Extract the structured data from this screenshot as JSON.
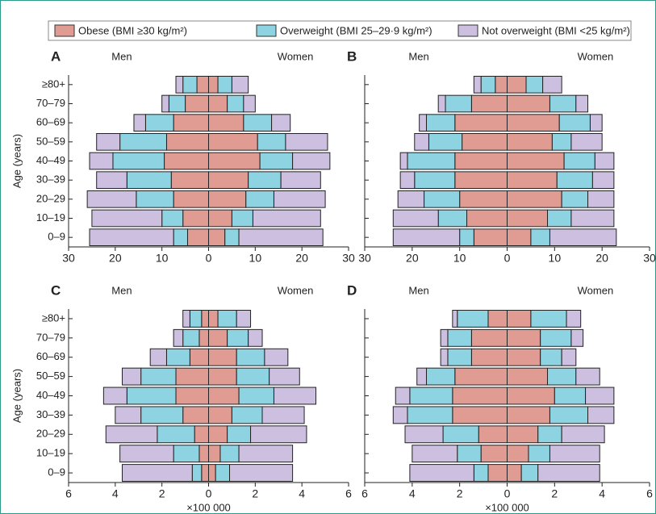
{
  "legend": [
    {
      "name": "Obese (BMI ≥30 kg/m²)",
      "color": "#e09b93"
    },
    {
      "name": "Overweight (BMI 25–29·9 kg/m²)",
      "color": "#8dd3e2"
    },
    {
      "name": "Not overweight (BMI <25 kg/m²)",
      "color": "#cdbfe0"
    }
  ],
  "chart_data": [
    {
      "type": "pyramid",
      "panel": "A",
      "y_label": "Age (years)",
      "categories": [
        "≥80+",
        "70–79",
        "60–69",
        "50–59",
        "40–49",
        "30–39",
        "20–29",
        "10–19",
        "0–9"
      ],
      "xlim": [
        0,
        30
      ],
      "xticks": [
        0,
        10,
        20,
        30
      ],
      "sides": [
        {
          "name": "Men",
          "series": [
            {
              "values": [
                2.5,
                5,
                7.5,
                9,
                9.5,
                8,
                7.5,
                5.5,
                4.5
              ]
            },
            {
              "values": [
                3,
                3.5,
                6,
                10,
                11,
                9.5,
                8,
                4.5,
                3
              ]
            },
            {
              "values": [
                1.5,
                1.5,
                2.5,
                5,
                5,
                6.5,
                10.5,
                15,
                18
              ]
            }
          ]
        },
        {
          "name": "Women",
          "series": [
            {
              "values": [
                2,
                4,
                7.5,
                10.5,
                11,
                8.5,
                8,
                5,
                3.5
              ]
            },
            {
              "values": [
                3,
                3.5,
                6,
                6,
                7,
                7,
                6,
                4.5,
                3
              ]
            },
            {
              "values": [
                3.5,
                2.5,
                4,
                9,
                8,
                8.5,
                11,
                14.5,
                18
              ]
            }
          ]
        }
      ]
    },
    {
      "type": "pyramid",
      "panel": "B",
      "categories": [
        null,
        null,
        null,
        null,
        null,
        null,
        null,
        null,
        null
      ],
      "xlim": [
        0,
        30
      ],
      "xticks": [
        0,
        10,
        20,
        30
      ],
      "sides": [
        {
          "name": "Men",
          "series": [
            {
              "values": [
                2.5,
                7.5,
                11,
                9.5,
                11,
                11,
                10,
                8.5,
                7
              ]
            },
            {
              "values": [
                3,
                5.5,
                6,
                7,
                10,
                8.5,
                7.5,
                6,
                3
              ]
            },
            {
              "values": [
                1.5,
                1.5,
                1.5,
                3,
                1.5,
                3,
                5.5,
                9.5,
                14
              ]
            }
          ]
        },
        {
          "name": "Women",
          "series": [
            {
              "values": [
                4,
                9,
                11,
                9.5,
                12,
                10.5,
                11.5,
                8.5,
                5
              ]
            },
            {
              "values": [
                3.5,
                5.5,
                6.5,
                4,
                6.5,
                7.5,
                5.5,
                5,
                4
              ]
            },
            {
              "values": [
                4,
                2.5,
                2.5,
                6.5,
                4,
                4.5,
                5.5,
                9,
                14
              ]
            }
          ]
        }
      ]
    },
    {
      "type": "pyramid",
      "panel": "C",
      "y_label": "Age (years)",
      "x_label": "×100 000",
      "categories": [
        "≥80+",
        "70–79",
        "60–69",
        "50–59",
        "40–49",
        "30–39",
        "20–29",
        "10–19",
        "0–9"
      ],
      "xlim": [
        0,
        6
      ],
      "xticks": [
        0,
        2,
        4,
        6
      ],
      "sides": [
        {
          "name": "Men",
          "series": [
            {
              "values": [
                0.3,
                0.4,
                0.8,
                1.4,
                1.4,
                1.1,
                0.6,
                0.4,
                0.3
              ]
            },
            {
              "values": [
                0.5,
                0.7,
                1.0,
                1.5,
                2.1,
                1.8,
                1.6,
                1.1,
                0.4
              ]
            },
            {
              "values": [
                0.3,
                0.4,
                0.7,
                0.8,
                1.0,
                1.1,
                2.2,
                2.3,
                3.0
              ]
            }
          ]
        },
        {
          "name": "Women",
          "series": [
            {
              "values": [
                0.4,
                0.8,
                1.2,
                1.2,
                1.3,
                1.0,
                0.8,
                0.5,
                0.3
              ]
            },
            {
              "values": [
                0.8,
                0.9,
                1.2,
                1.4,
                1.5,
                1.3,
                1.0,
                0.8,
                0.6
              ]
            },
            {
              "values": [
                0.6,
                0.6,
                1.0,
                1.3,
                1.8,
                1.8,
                2.4,
                2.3,
                2.7
              ]
            }
          ]
        }
      ]
    },
    {
      "type": "pyramid",
      "panel": "D",
      "x_label": "×100 000",
      "categories": [
        null,
        null,
        null,
        null,
        null,
        null,
        null,
        null,
        null
      ],
      "xlim": [
        0,
        6
      ],
      "xticks": [
        0,
        2,
        4,
        6
      ],
      "sides": [
        {
          "name": "Men",
          "series": [
            {
              "values": [
                0.8,
                1.5,
                1.5,
                2.2,
                2.3,
                2.3,
                1.2,
                1.1,
                0.8
              ]
            },
            {
              "values": [
                1.3,
                1.0,
                1.0,
                1.2,
                1.8,
                1.9,
                1.5,
                1.0,
                0.6
              ]
            },
            {
              "values": [
                0.2,
                0.3,
                0.3,
                0.4,
                0.6,
                0.6,
                1.6,
                1.9,
                2.7
              ]
            }
          ]
        },
        {
          "name": "Women",
          "series": [
            {
              "values": [
                1.0,
                1.4,
                1.4,
                1.7,
                2.0,
                1.8,
                1.3,
                0.9,
                0.6
              ]
            },
            {
              "values": [
                1.5,
                1.3,
                0.9,
                1.2,
                1.3,
                1.6,
                1.0,
                0.9,
                0.7
              ]
            },
            {
              "values": [
                0.6,
                0.5,
                0.6,
                1.0,
                1.2,
                1.1,
                1.8,
                2.1,
                2.6
              ]
            }
          ]
        }
      ]
    }
  ]
}
